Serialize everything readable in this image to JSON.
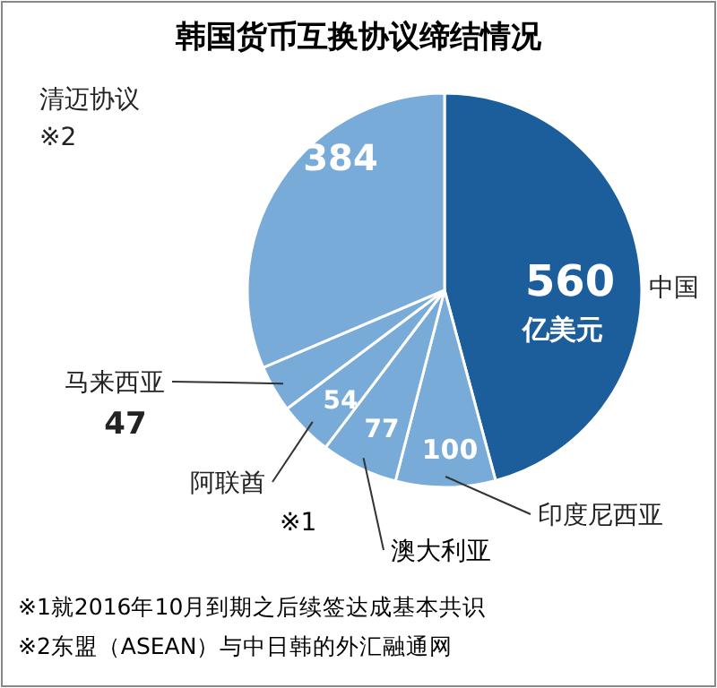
{
  "chart_data": {
    "type": "pie",
    "title": "韩国货币互换协议缔结情况",
    "categories": [
      "中国",
      "印度尼西亚",
      "※1澳大利亚",
      "阿联酋",
      "马来西亚",
      "清迈协议※2"
    ],
    "values": [
      560,
      100,
      77,
      54,
      47,
      384
    ],
    "colors": [
      "#1c5d9c",
      "#79abd8",
      "#79abd8",
      "#79abd8",
      "#79abd8",
      "#79abd8"
    ],
    "data_labels": true,
    "annotations": [
      "亿美元",
      "※1就2016年10月到期之后续签达成基本共识",
      "※2东盟（ASEAN）与中日韩的外汇融通网"
    ]
  }
}
